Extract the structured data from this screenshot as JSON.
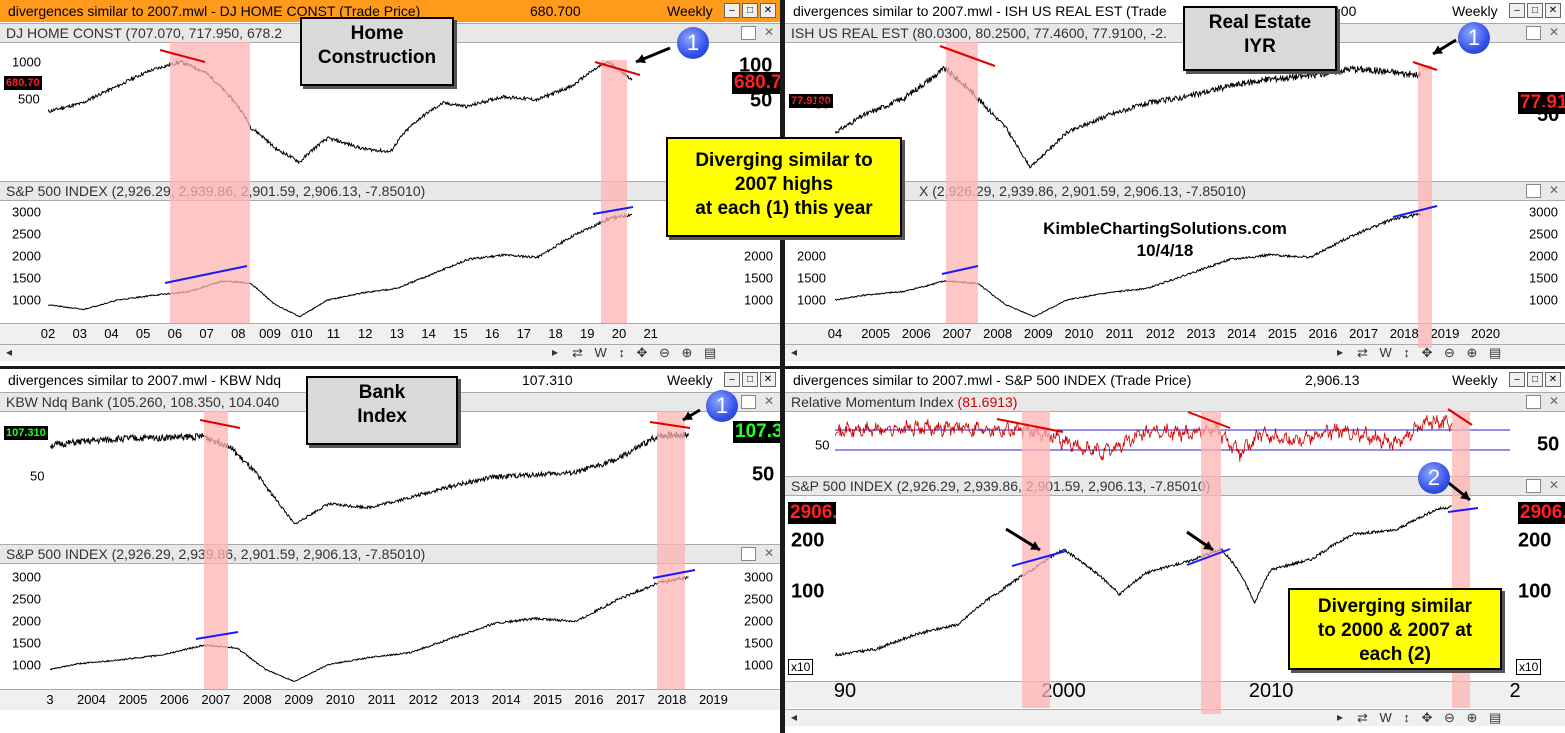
{
  "windows": [
    {
      "id": "w1",
      "title": "divergences similar to 2007.mwl - DJ HOME CONST (Trade Price)",
      "price": "680.700",
      "period": "Weekly",
      "active": true,
      "callout": "Home\nConstruction",
      "badge": "1",
      "top_pane": {
        "header": "DJ HOME CONST (707.070, 717.950, 678.2",
        "price_tag": "680.70",
        "price_tag_right": "680.7",
        "y_left": [
          "1000",
          "500"
        ],
        "y_right": [
          "100",
          "50"
        ]
      },
      "bottom_pane": {
        "header": "S&P 500 INDEX (2,926.29, 2,939.86, 2,901.59, 2,906.13, -7.85010)",
        "y_left": [
          "3000",
          "2500",
          "2000",
          "1500",
          "1000"
        ],
        "y_right": [
          "3000",
          "2500",
          "2000",
          "1500",
          "1000"
        ]
      },
      "x_labels": [
        "02",
        "03",
        "04",
        "05",
        "06",
        "07",
        "08",
        "009",
        "010",
        "11",
        "12",
        "13",
        "14",
        "15",
        "16",
        "17",
        "18",
        "19",
        "20",
        "21"
      ]
    },
    {
      "id": "w2",
      "title": "divergences similar to 2007.mwl - ISH US REAL EST (Trade",
      "price": "100",
      "period": "Weekly",
      "active": false,
      "callout": "Real Estate\nIYR",
      "badge": "1",
      "top_pane": {
        "header": "ISH US REAL EST (80.0300, 80.2500, 77.4600, 77.9100, -2.",
        "price_tag": "77.9100",
        "price_tag_right": "77.91",
        "y_left": [
          "50"
        ],
        "y_right": [
          "50"
        ]
      },
      "bottom_pane": {
        "header": "X (2,926.29, 2,939.86, 2,901.59, 2,906.13, -7.85010)",
        "y_left": [
          "3000",
          "2500",
          "2000",
          "1500",
          "1000"
        ],
        "y_right": [
          "3000",
          "2500",
          "2000",
          "1500",
          "1000"
        ]
      },
      "x_labels": [
        "04",
        "2005",
        "2006",
        "2007",
        "2008",
        "2009",
        "2010",
        "2011",
        "2012",
        "2013",
        "2014",
        "2015",
        "2016",
        "2017",
        "2018",
        "2019",
        "2020"
      ]
    },
    {
      "id": "w3",
      "title": "divergences similar to 2007.mwl - KBW Ndq",
      "price": "107.310",
      "period": "Weekly",
      "active": false,
      "callout": "Bank\nIndex",
      "badge": "1",
      "top_pane": {
        "header": "KBW Ndq Bank (105.260, 108.350, 104.040",
        "price_tag": "107.310",
        "price_tag_right": "107.3",
        "y_left": [
          "50"
        ],
        "y_right": [
          "50"
        ]
      },
      "bottom_pane": {
        "header": "S&P 500 INDEX (2,926.29, 2,939.86, 2,901.59, 2,906.13, -7.85010)",
        "y_left": [
          "3000",
          "2500",
          "2000",
          "1500",
          "1000"
        ],
        "y_right": [
          "3000",
          "2500",
          "2000",
          "1500",
          "1000"
        ]
      },
      "x_labels": [
        "3",
        "2004",
        "2005",
        "2006",
        "2007",
        "2008",
        "2009",
        "2010",
        "2011",
        "2012",
        "2013",
        "2014",
        "2015",
        "2016",
        "2017",
        "2018",
        "2019"
      ]
    },
    {
      "id": "w4",
      "title": "divergences similar to 2007.mwl - S&P 500 INDEX (Trade Price)",
      "price": "2,906.13",
      "period": "Weekly",
      "active": false,
      "badge": "2",
      "top_pane": {
        "header_a": "Relative Momentum Index",
        "header_b": "(81.6913)",
        "y_left": [
          "50"
        ],
        "y_right": [
          "50"
        ]
      },
      "bottom_pane": {
        "header": "S&P 500 INDEX (2,926.29, 2,939.86, 2,901.59, 2,906.13, -7.85010)",
        "price_tag": "2906.",
        "price_tag_right": "2906.",
        "y_left": [
          "200",
          "100"
        ],
        "y_right": [
          "200",
          "100"
        ],
        "scale_note": "x10"
      },
      "x_labels": [
        "90",
        "2000",
        "2010",
        "2"
      ]
    }
  ],
  "annotations": {
    "yellow_main": "Diverging similar to\n2007 highs\nat each (1) this year",
    "yellow_secondary": "Diverging similar\nto 2000 & 2007 at\neach (2)",
    "watermark_site": "KimbleChartingSolutions.com",
    "watermark_date": "10/4/18"
  },
  "toolbar": {
    "scroll_left": "◂",
    "scroll_right": "▸",
    "icons": "⇄ W ↕ ✥ ⊖ ⊕ ▤"
  },
  "colors": {
    "active_title": "#ff9a1a",
    "highlight_band": "#ffb3b3",
    "divergence_down": "#e00000",
    "divergence_up": "#1a1aff",
    "callout_bg": "#d9d9d9",
    "note_bg": "#ffff00",
    "badge": "#3550e8"
  },
  "chart_data": [
    {
      "type": "line",
      "x": [
        2002,
        2003,
        2004,
        2005,
        2005.8,
        2006.5,
        2007,
        2007.8,
        2008.5,
        2009.2,
        2010,
        2011,
        2011.8,
        2012.5,
        2013.3,
        2014,
        2015,
        2016,
        2017,
        2018,
        2018.7
      ],
      "series": [
        {
          "values": [
            350,
            420,
            600,
            850,
            1000,
            800,
            560,
            250,
            160,
            120,
            200,
            160,
            150,
            280,
            420,
            390,
            480,
            450,
            600,
            1000,
            680.7
          ]
        }
      ],
      "xlim": [
        2002,
        2021.5
      ]
    },
    {
      "type": "line",
      "x": [
        2002,
        2003,
        2004,
        2005,
        2006,
        2007,
        2007.8,
        2008.5,
        2009.2,
        2010,
        2011,
        2012,
        2013,
        2014,
        2015,
        2016,
        2017,
        2018,
        2018.7
      ],
      "series": [
        {
          "values": [
            1000,
            900,
            1100,
            1200,
            1270,
            1500,
            1450,
            1000,
            750,
            1100,
            1250,
            1350,
            1650,
            1950,
            2050,
            2000,
            2450,
            2800,
            2906.13
          ]
        }
      ],
      "xlim": [
        2002,
        2021.5
      ],
      "ylim": [
        700,
        3100
      ]
    },
    {
      "type": "line",
      "x": [
        2004.3,
        2005,
        2006,
        2007,
        2007.6,
        2008.5,
        2009.1,
        2010,
        2011,
        2012,
        2013,
        2014,
        2015,
        2016,
        2017,
        2018,
        2018.7
      ],
      "series": [
        {
          "values": [
            45,
            55,
            65,
            82,
            70,
            48,
            25,
            45,
            55,
            62,
            66,
            72,
            76,
            78,
            82,
            80,
            77.91
          ]
        }
      ],
      "xlim": [
        2004.3,
        2020.9
      ]
    },
    {
      "type": "line",
      "x": [
        2004.3,
        2005,
        2006,
        2007,
        2007.8,
        2008.5,
        2009.2,
        2010,
        2011,
        2012,
        2013,
        2014,
        2015,
        2016,
        2017,
        2018,
        2018.7
      ],
      "series": [
        {
          "values": [
            1100,
            1200,
            1280,
            1500,
            1450,
            1000,
            750,
            1100,
            1250,
            1350,
            1650,
            1950,
            2050,
            2000,
            2450,
            2800,
            2906.13
          ]
        }
      ],
      "xlim": [
        2004.3,
        2020.9
      ],
      "ylim": [
        700,
        3100
      ]
    },
    {
      "type": "line",
      "x": [
        2003.3,
        2004,
        2005,
        2006,
        2007,
        2007.6,
        2008.3,
        2009.2,
        2010,
        2011,
        2012,
        2013,
        2014,
        2015,
        2016,
        2017,
        2018,
        2018.7
      ],
      "series": [
        {
          "values": [
            98,
            101,
            104,
            105,
            106,
            98,
            72,
            28,
            46,
            43,
            52,
            62,
            70,
            72,
            74,
            86,
            107,
            107.31
          ]
        }
      ],
      "xlim": [
        2003.3,
        2019.7
      ]
    },
    {
      "type": "line",
      "x": [
        2003.3,
        2004,
        2005,
        2006,
        2007,
        2007.8,
        2008.5,
        2009.2,
        2010,
        2011,
        2012,
        2013,
        2014,
        2015,
        2016,
        2017,
        2018,
        2018.7
      ],
      "series": [
        {
          "values": [
            1000,
            1120,
            1200,
            1300,
            1500,
            1450,
            1000,
            750,
            1100,
            1250,
            1350,
            1650,
            1950,
            2050,
            2000,
            2450,
            2800,
            2906.13
          ]
        }
      ],
      "xlim": [
        2003.3,
        2019.7
      ],
      "ylim": [
        700,
        3100
      ]
    },
    {
      "type": "line",
      "title": "Relative Momentum Index",
      "x": [
        1989,
        1992,
        1995,
        1998,
        1999.5,
        2001,
        2002,
        2004,
        2006,
        2007.3,
        2008.5,
        2009.5,
        2011,
        2013,
        2015,
        2016,
        2017.5,
        2018.7
      ],
      "series": [
        {
          "values": [
            68,
            72,
            75,
            70,
            58,
            30,
            25,
            66,
            64,
            74,
            22,
            62,
            50,
            68,
            55,
            40,
            88,
            81.69
          ]
        }
      ],
      "xlim": [
        1989,
        2021.5
      ],
      "ylim": [
        0,
        100
      ]
    },
    {
      "type": "line",
      "x": [
        1989,
        1991,
        1993,
        1995,
        1997,
        1998.5,
        2000,
        2001,
        2002.7,
        2004,
        2006,
        2007.6,
        2008.3,
        2009.2,
        2010,
        2012,
        2014,
        2016,
        2018,
        2018.7
      ],
      "series": [
        {
          "values": [
            33,
            36,
            45,
            52,
            85,
            115,
            155,
            125,
            80,
            110,
            130,
            155,
            120,
            70,
            115,
            135,
            195,
            205,
            280,
            290.6
          ]
        }
      ],
      "xlim": [
        1989,
        2021.5
      ],
      "ylim": [
        25,
        320
      ]
    }
  ]
}
